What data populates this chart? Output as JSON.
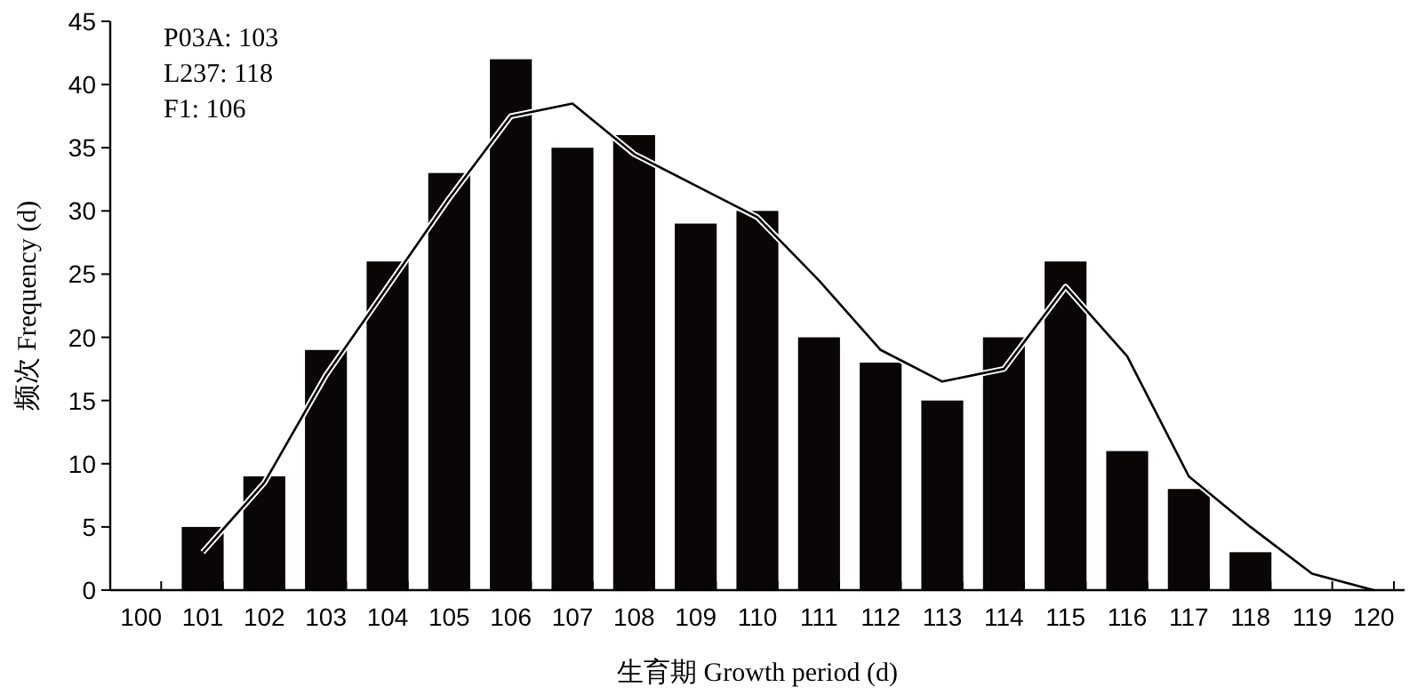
{
  "chart_data": {
    "type": "bar",
    "xlabel": "生育期 Growth period (d)",
    "ylabel": "频次 Frequency (d)",
    "categories": [
      "100",
      "101",
      "102",
      "103",
      "104",
      "105",
      "106",
      "107",
      "108",
      "109",
      "110",
      "111",
      "112",
      "113",
      "114",
      "115",
      "116",
      "117",
      "118",
      "119",
      "120"
    ],
    "series": [
      {
        "color": "#0a0605",
        "values": [
          null,
          5,
          9,
          19,
          26,
          33,
          42,
          35,
          36,
          29,
          30,
          20,
          18,
          15,
          20,
          26,
          11,
          8,
          3,
          null,
          null
        ]
      },
      {
        "type": "line",
        "color": "#000000",
        "values": [
          null,
          3,
          8.5,
          17,
          24,
          31,
          37.5,
          38.5,
          34.5,
          32,
          29.5,
          24.5,
          19,
          16.5,
          17.5,
          24,
          18.5,
          9,
          5,
          1.3,
          0
        ]
      }
    ],
    "ylim": [
      0,
      45
    ],
    "yticks": [
      0,
      5,
      10,
      15,
      20,
      25,
      30,
      35,
      40,
      45
    ],
    "grid": false,
    "marker": "none",
    "line_style": "solid",
    "annotations": [
      "P03A: 103",
      "L237: 118",
      "F1: 106"
    ]
  }
}
